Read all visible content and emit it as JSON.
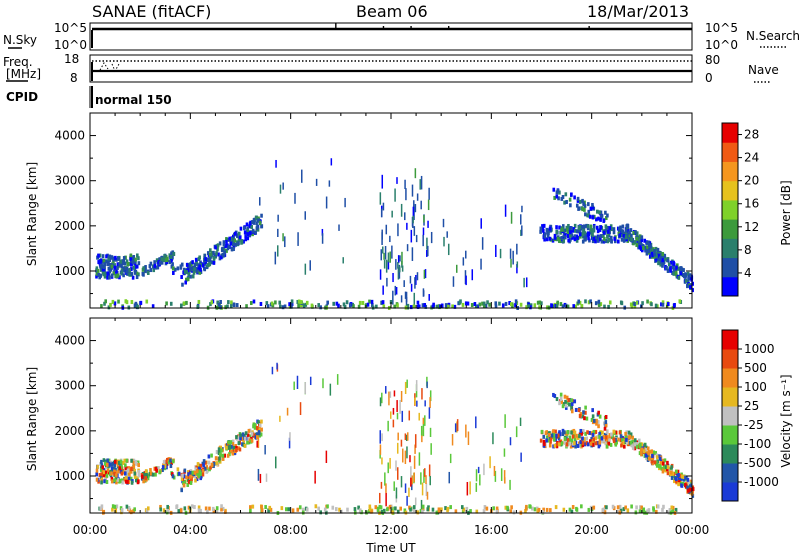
{
  "header": {
    "title": "SANAE (fitACF)",
    "beam": "Beam 06",
    "date": "18/Mar/2013"
  },
  "top_panels": {
    "nsky_label": "N.Sky",
    "nsearch_label": "N.Search",
    "nsky_ticks": [
      "10^5",
      "10^0"
    ],
    "nsearch_ticks": [
      "10^5",
      "10^0"
    ],
    "freq_label_1": "Freq.",
    "freq_label_2": "[MHz]",
    "freq_ticks": [
      "18",
      "8"
    ],
    "nave_label": "Nave",
    "nave_ticks": [
      "80",
      "0"
    ],
    "cpid_label": "CPID",
    "cpid_value": "normal 150"
  },
  "colors": {
    "power_scale": [
      "#0000ff",
      "#1f4fa6",
      "#2a7f6c",
      "#3c9a3c",
      "#7fd12a",
      "#e6c21e",
      "#f5961e",
      "#f05a14",
      "#e60000"
    ],
    "velocity_scale": [
      "#1a3ad6",
      "#2256a8",
      "#2c8a5a",
      "#5ac83a",
      "#c0c0c0",
      "#e6b820",
      "#f08a1e",
      "#e84a10",
      "#e60000"
    ]
  },
  "chart_data": [
    {
      "type": "heatmap",
      "title": "",
      "quantity": "Power",
      "ylabel": "Slant Range [km]",
      "xlabel": "",
      "ylim": [
        180,
        4500
      ],
      "xlim_hours": [
        0,
        24
      ],
      "yticks": [
        "1000",
        "2000",
        "3000",
        "4000"
      ],
      "colorbar_label": "Power [dB]",
      "colorbar_ticks": [
        "4",
        "8",
        "12",
        "16",
        "20",
        "24",
        "28"
      ],
      "colorbar_range": [
        0,
        30
      ]
    },
    {
      "type": "heatmap",
      "title": "",
      "quantity": "Velocity",
      "ylabel": "Slant Range [km]",
      "xlabel": "Time UT",
      "ylim": [
        180,
        4500
      ],
      "xlim_hours": [
        0,
        24
      ],
      "xticks": [
        "00:00",
        "04:00",
        "08:00",
        "12:00",
        "16:00",
        "20:00",
        "00:00"
      ],
      "yticks": [
        "1000",
        "2000",
        "3000",
        "4000"
      ],
      "colorbar_label": "Velocity [m s⁻¹]",
      "colorbar_ticks": [
        "1000",
        "500",
        "100",
        "25",
        "-25",
        "-100",
        "-500",
        "-1000"
      ]
    }
  ]
}
